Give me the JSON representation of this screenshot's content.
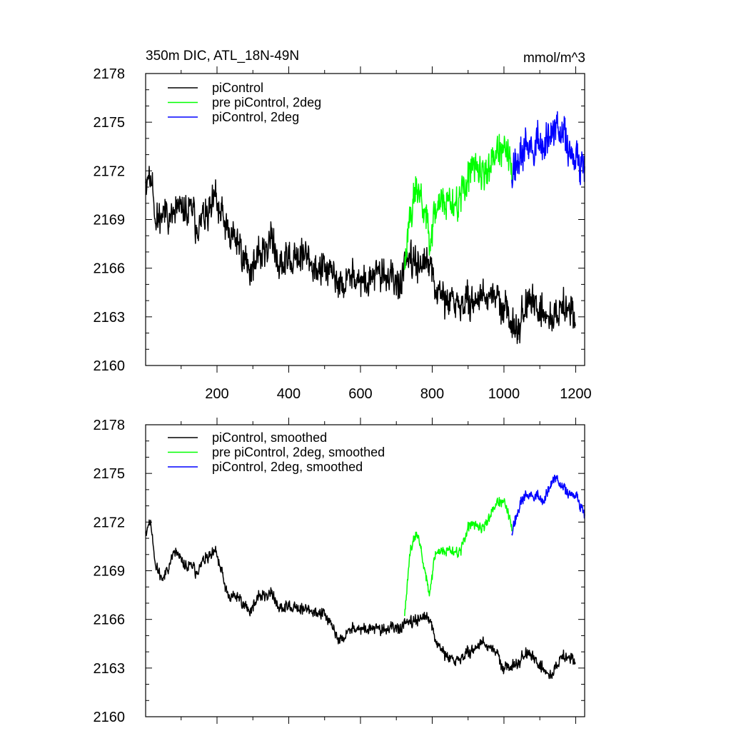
{
  "chart_data": [
    {
      "type": "line",
      "title_left": "350m DIC, ATL_18N-49N",
      "title_right": "mmol/m^3",
      "xlim": [
        1,
        1225
      ],
      "ylim": [
        2160,
        2178
      ],
      "xticks": [
        200,
        400,
        600,
        800,
        1000,
        1200
      ],
      "xtick_labels": [
        "200",
        "400",
        "600",
        "800",
        "1000",
        "1200"
      ],
      "yticks": [
        2160,
        2163,
        2166,
        2169,
        2172,
        2175,
        2178
      ],
      "ytick_labels": [
        "2160",
        "2163",
        "2166",
        "2169",
        "2172",
        "2175",
        "2178"
      ],
      "legend_position": "top-left",
      "series": [
        {
          "name": "piControl",
          "color": "#000000",
          "x_start": 1,
          "x_end": 1200,
          "anchors": [
            [
              1,
              2171.8
            ],
            [
              20,
              2171.6
            ],
            [
              30,
              2168.8
            ],
            [
              50,
              2169.6
            ],
            [
              80,
              2169.4
            ],
            [
              110,
              2169.5
            ],
            [
              140,
              2168.9
            ],
            [
              170,
              2169.2
            ],
            [
              200,
              2169.4
            ],
            [
              230,
              2167.9
            ],
            [
              260,
              2167.6
            ],
            [
              290,
              2166.2
            ],
            [
              320,
              2166.6
            ],
            [
              350,
              2167.8
            ],
            [
              380,
              2166.3
            ],
            [
              410,
              2166.6
            ],
            [
              440,
              2166.8
            ],
            [
              470,
              2166.1
            ],
            [
              500,
              2165.9
            ],
            [
              540,
              2164.7
            ],
            [
              580,
              2165.3
            ],
            [
              620,
              2165.1
            ],
            [
              660,
              2165.5
            ],
            [
              700,
              2165.1
            ],
            [
              740,
              2166.2
            ],
            [
              770,
              2166.4
            ],
            [
              790,
              2166.1
            ],
            [
              820,
              2164.3
            ],
            [
              860,
              2163.6
            ],
            [
              900,
              2163.8
            ],
            [
              940,
              2164.3
            ],
            [
              980,
              2164.1
            ],
            [
              1000,
              2163.5
            ],
            [
              1030,
              2162.5
            ],
            [
              1060,
              2163.6
            ],
            [
              1100,
              2163.8
            ],
            [
              1130,
              2162.9
            ],
            [
              1160,
              2163.6
            ],
            [
              1200,
              2163.4
            ]
          ],
          "amplitude": 2.2,
          "seed": 11
        },
        {
          "name": "pre piControl, 2deg",
          "color": "#00ff00",
          "x_start": 723,
          "x_end": 1022,
          "anchors": [
            [
              723,
              2166.2
            ],
            [
              740,
              2170.2
            ],
            [
              760,
              2171.0
            ],
            [
              790,
              2168.4
            ],
            [
              820,
              2170.3
            ],
            [
              850,
              2170.2
            ],
            [
              880,
              2170.0
            ],
            [
              900,
              2171.9
            ],
            [
              940,
              2171.8
            ],
            [
              980,
              2173.2
            ],
            [
              1000,
              2173.1
            ],
            [
              1022,
              2171.8
            ]
          ],
          "amplitude": 2.4,
          "seed": 23
        },
        {
          "name": "piControl, 2deg",
          "color": "#0000ff",
          "x_start": 1022,
          "x_end": 1225,
          "anchors": [
            [
              1022,
              2172.2
            ],
            [
              1050,
              2173.0
            ],
            [
              1080,
              2173.5
            ],
            [
              1110,
              2173.6
            ],
            [
              1140,
              2174.4
            ],
            [
              1170,
              2173.5
            ],
            [
              1200,
              2173.2
            ],
            [
              1225,
              2172.7
            ]
          ],
          "amplitude": 2.6,
          "seed": 37
        }
      ]
    },
    {
      "type": "line",
      "xlim": [
        1,
        1225
      ],
      "ylim": [
        2160,
        2178
      ],
      "xticks": [
        200,
        400,
        600,
        800,
        1000,
        1200
      ],
      "yticks": [
        2160,
        2163,
        2166,
        2169,
        2172,
        2175,
        2178
      ],
      "ytick_labels": [
        "2160",
        "2163",
        "2166",
        "2169",
        "2172",
        "2175",
        "2178"
      ],
      "legend_position": "top-left",
      "series": [
        {
          "name": "piControl, smoothed",
          "color": "#000000",
          "x_start": 1,
          "x_end": 1200,
          "anchors": [
            [
              1,
              2171.5
            ],
            [
              15,
              2172.1
            ],
            [
              30,
              2169.2
            ],
            [
              50,
              2168.5
            ],
            [
              80,
              2170.2
            ],
            [
              110,
              2169.3
            ],
            [
              140,
              2169.0
            ],
            [
              170,
              2169.8
            ],
            [
              200,
              2169.8
            ],
            [
              230,
              2167.3
            ],
            [
              260,
              2167.4
            ],
            [
              290,
              2166.6
            ],
            [
              320,
              2167.4
            ],
            [
              350,
              2167.6
            ],
            [
              380,
              2166.7
            ],
            [
              410,
              2166.8
            ],
            [
              440,
              2166.6
            ],
            [
              470,
              2166.5
            ],
            [
              500,
              2166.3
            ],
            [
              540,
              2164.6
            ],
            [
              580,
              2165.4
            ],
            [
              620,
              2165.4
            ],
            [
              660,
              2165.3
            ],
            [
              700,
              2165.5
            ],
            [
              740,
              2165.7
            ],
            [
              770,
              2166.2
            ],
            [
              790,
              2166.0
            ],
            [
              820,
              2164.2
            ],
            [
              860,
              2163.3
            ],
            [
              900,
              2163.9
            ],
            [
              940,
              2164.6
            ],
            [
              980,
              2163.9
            ],
            [
              1000,
              2162.9
            ],
            [
              1030,
              2163.3
            ],
            [
              1060,
              2163.9
            ],
            [
              1100,
              2163.3
            ],
            [
              1130,
              2162.5
            ],
            [
              1160,
              2163.7
            ],
            [
              1200,
              2163.6
            ]
          ],
          "amplitude": 0.75,
          "seed": 11
        },
        {
          "name": "pre piControl, 2deg, smoothed",
          "color": "#00ff00",
          "x_start": 723,
          "x_end": 1022,
          "anchors": [
            [
              723,
              2166.3
            ],
            [
              740,
              2170.7
            ],
            [
              760,
              2171.3
            ],
            [
              790,
              2167.7
            ],
            [
              810,
              2170.2
            ],
            [
              850,
              2170.3
            ],
            [
              880,
              2170.1
            ],
            [
              900,
              2171.8
            ],
            [
              940,
              2171.6
            ],
            [
              980,
              2173.2
            ],
            [
              1000,
              2173.2
            ],
            [
              1022,
              2171.6
            ]
          ],
          "amplitude": 0.7,
          "seed": 23
        },
        {
          "name": "piControl, 2deg, smoothed",
          "color": "#0000ff",
          "x_start": 1022,
          "x_end": 1225,
          "anchors": [
            [
              1022,
              2171.5
            ],
            [
              1050,
              2173.4
            ],
            [
              1080,
              2173.7
            ],
            [
              1110,
              2173.3
            ],
            [
              1140,
              2174.7
            ],
            [
              1170,
              2173.8
            ],
            [
              1200,
              2173.8
            ],
            [
              1225,
              2172.6
            ]
          ],
          "amplitude": 0.75,
          "seed": 37
        }
      ]
    }
  ]
}
